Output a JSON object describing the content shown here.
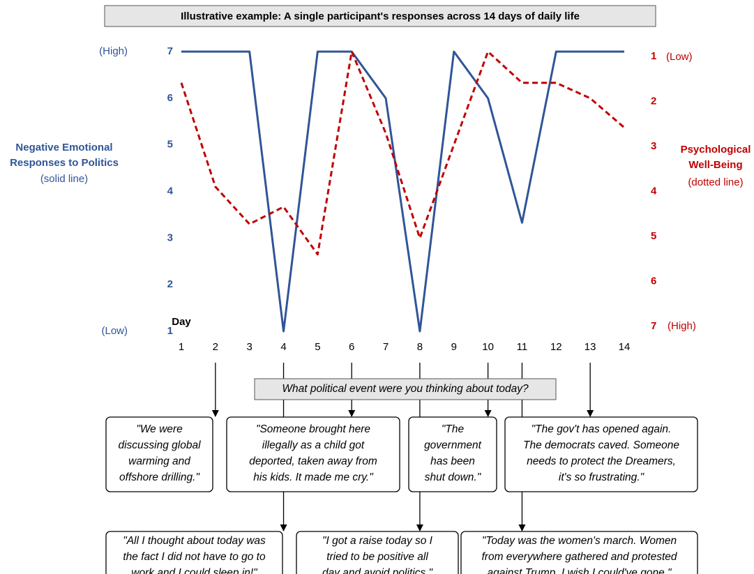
{
  "chart_data": {
    "type": "line",
    "title": "Illustrative example: A single participant's responses across 14 days of daily life",
    "x_label": "Day",
    "x": [
      1,
      2,
      3,
      4,
      5,
      6,
      7,
      8,
      9,
      10,
      11,
      12,
      13,
      14
    ],
    "xlim": [
      1,
      14
    ],
    "y_label": [
      "Negative Emotional",
      "Responses to Politics"
    ],
    "y_note": "(solid line)",
    "y_end_labels": [
      "(High)",
      "(Low)"
    ],
    "ylim": [
      1,
      7
    ],
    "yticks": [
      1,
      2,
      3,
      4,
      5,
      6,
      7
    ],
    "y2_label": [
      "Psychological",
      "Well-Being"
    ],
    "y2_note": "(dotted line)",
    "y2_end_labels": [
      "(Low)",
      "(High)"
    ],
    "y2lim": [
      7,
      1
    ],
    "y2ticks": [
      1,
      2,
      3,
      4,
      5,
      6,
      7
    ],
    "series": [
      {
        "name": "Negative Emotional Responses to Politics",
        "color": "#2f5597",
        "style": "solid",
        "values": [
          7,
          7,
          7,
          1,
          7,
          7,
          6,
          1,
          7,
          6,
          3.33,
          7,
          7,
          7
        ]
      },
      {
        "name": "Psychological Well-Being",
        "color": "#c00000",
        "style": "dashed",
        "axis": "y2",
        "values": [
          1.67,
          3.9,
          4.7,
          4.33,
          5.35,
          1,
          2.75,
          5,
          3,
          1,
          1.67,
          1.67,
          2,
          2.63
        ]
      }
    ]
  },
  "question": "What political event were you thinking about today?",
  "upper_responses": [
    {
      "day": 2,
      "lines": [
        "\"We were",
        "discussing global",
        "warming and",
        "offshore drilling.\""
      ]
    },
    {
      "day": 6,
      "lines": [
        "\"Someone brought here",
        "illegally as a child got",
        "deported, taken away from",
        "his kids. It made me cry.\""
      ]
    },
    {
      "day": 10,
      "lines": [
        "\"The",
        "government",
        "has been",
        "shut down.\""
      ]
    },
    {
      "day": 13,
      "lines": [
        "\"The gov't has opened again.",
        "The democrats caved.  Someone",
        "needs to protect the Dreamers,",
        "it's so frustrating.\""
      ]
    }
  ],
  "lower_responses": [
    {
      "day": 4,
      "lines": [
        "\"All I thought about today was",
        "the fact I did not have to go to",
        "work and I could sleep in!\""
      ]
    },
    {
      "day": 8,
      "lines": [
        "\"I got a raise today so I",
        "tried to be positive all",
        "day and avoid politics.\""
      ]
    },
    {
      "day": 11,
      "lines": [
        "\"Today was the women's march. Women",
        "from everywhere gathered and protested",
        "against Trump. I wish I could've gone.\""
      ]
    }
  ]
}
